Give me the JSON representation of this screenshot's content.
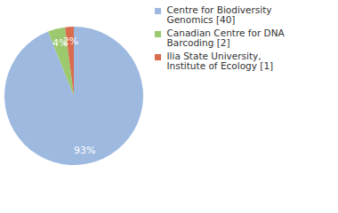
{
  "chart_data": {
    "type": "pie",
    "categories": [
      "Centre for Biodiversity Genomics [40]",
      "Canadian Centre for DNA Barcoding [2]",
      "Ilia State University, Institute of Ecology [1]"
    ],
    "values": [
      93,
      4,
      2
    ],
    "value_labels": [
      "93%",
      "4%",
      "2%"
    ],
    "colors": [
      "#9db9e0",
      "#9cc86e",
      "#d96b4f"
    ],
    "data_labels": true,
    "legend": "right"
  }
}
